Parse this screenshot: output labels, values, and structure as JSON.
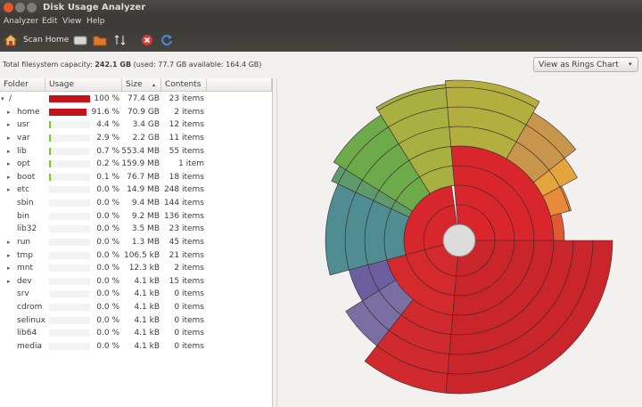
{
  "window": {
    "title": "Disk Usage Analyzer"
  },
  "menu": [
    "Analyzer",
    "Edit",
    "View",
    "Help"
  ],
  "toolbar": {
    "scan_home": "Scan Home"
  },
  "status": {
    "label": "Total filesystem capacity:",
    "capacity": "242.1 GB",
    "detail": "(used: 77.7 GB available: 164.4 GB)"
  },
  "view_selector": "View as Rings Chart",
  "table": {
    "columns": [
      "Folder",
      "Usage",
      "Size",
      "Contents"
    ],
    "rows": [
      {
        "folder": "/",
        "usage": "100 %",
        "size": "77.4 GB",
        "contents": "23 items",
        "expandable": true,
        "expanded": true
      },
      {
        "folder": "home",
        "usage": "91.6 %",
        "size": "70.9 GB",
        "contents": "2 items",
        "expandable": true
      },
      {
        "folder": "usr",
        "usage": "4.4 %",
        "size": "3.4 GB",
        "contents": "12 items",
        "expandable": true
      },
      {
        "folder": "var",
        "usage": "2.9 %",
        "size": "2.2 GB",
        "contents": "11 items",
        "expandable": true
      },
      {
        "folder": "lib",
        "usage": "0.7 %",
        "size": "553.4 MB",
        "contents": "55 items",
        "expandable": true
      },
      {
        "folder": "opt",
        "usage": "0.2 %",
        "size": "159.9 MB",
        "contents": "1 item",
        "expandable": true
      },
      {
        "folder": "boot",
        "usage": "0.1 %",
        "size": "76.7 MB",
        "contents": "18 items",
        "expandable": true
      },
      {
        "folder": "etc",
        "usage": "0.0 %",
        "size": "14.9 MB",
        "contents": "248 items",
        "expandable": true
      },
      {
        "folder": "sbin",
        "usage": "0.0 %",
        "size": "9.4 MB",
        "contents": "144 items",
        "expandable": false
      },
      {
        "folder": "bin",
        "usage": "0.0 %",
        "size": "9.2 MB",
        "contents": "136 items",
        "expandable": false
      },
      {
        "folder": "lib32",
        "usage": "0.0 %",
        "size": "3.5 MB",
        "contents": "23 items",
        "expandable": false
      },
      {
        "folder": "run",
        "usage": "0.0 %",
        "size": "1.3 MB",
        "contents": "45 items",
        "expandable": true
      },
      {
        "folder": "tmp",
        "usage": "0.0 %",
        "size": "106.5 kB",
        "contents": "21 items",
        "expandable": true
      },
      {
        "folder": "mnt",
        "usage": "0.0 %",
        "size": "12.3 kB",
        "contents": "2 items",
        "expandable": true
      },
      {
        "folder": "dev",
        "usage": "0.0 %",
        "size": "4.1 kB",
        "contents": "15 items",
        "expandable": true
      },
      {
        "folder": "srv",
        "usage": "0.0 %",
        "size": "4.1 kB",
        "contents": "0 items",
        "expandable": false
      },
      {
        "folder": "cdrom",
        "usage": "0.0 %",
        "size": "4.1 kB",
        "contents": "0 items",
        "expandable": false
      },
      {
        "folder": "selinux",
        "usage": "0.0 %",
        "size": "4.1 kB",
        "contents": "0 items",
        "expandable": false
      },
      {
        "folder": "lib64",
        "usage": "0.0 %",
        "size": "4.1 kB",
        "contents": "0 items",
        "expandable": false
      },
      {
        "folder": "media",
        "usage": "0.0 %",
        "size": "4.1 kB",
        "contents": "0 items",
        "expandable": false
      }
    ]
  }
}
